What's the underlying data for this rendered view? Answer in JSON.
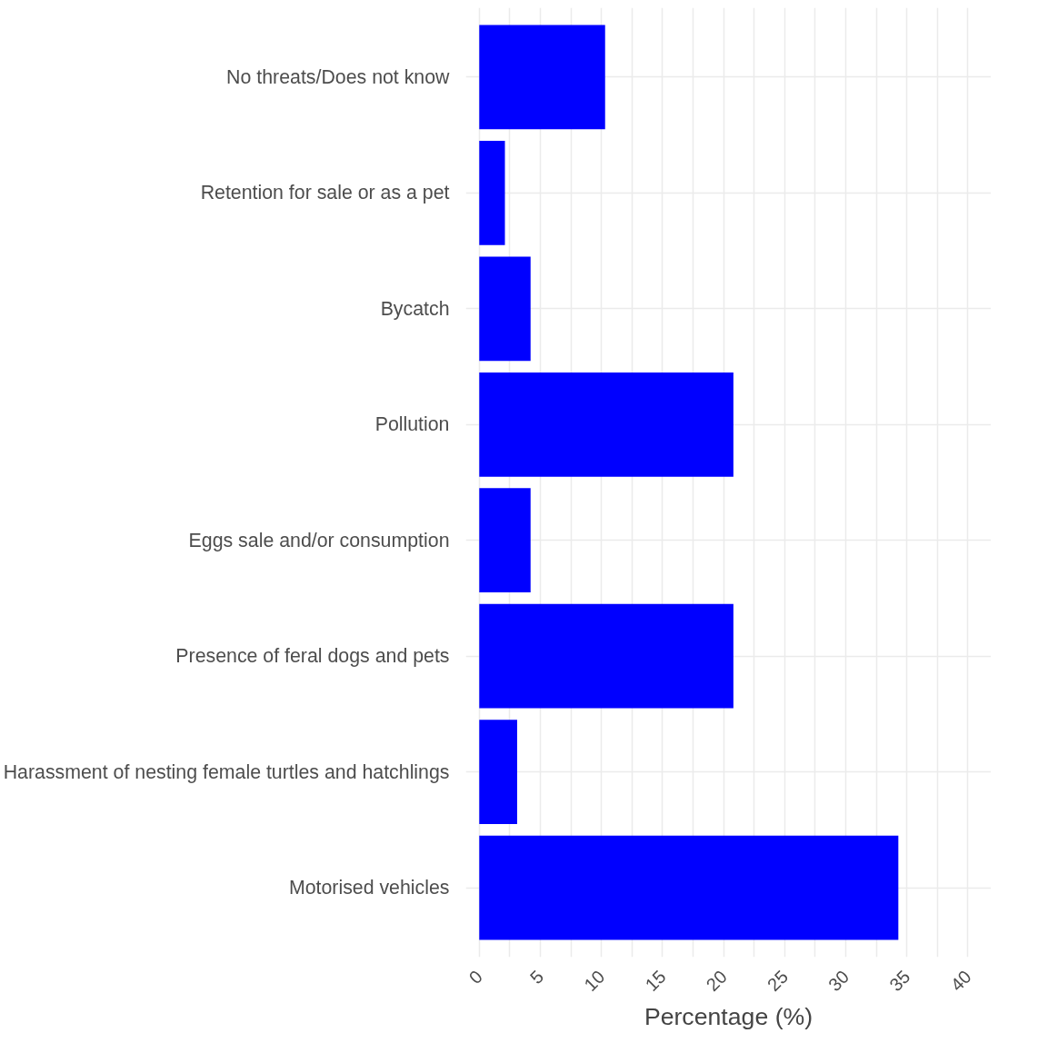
{
  "chart_data": {
    "type": "bar",
    "orientation": "horizontal",
    "xlabel": "Percentage (%)",
    "categories": [
      "No threats/Does not know",
      "Retention for sale or as a pet",
      "Bycatch",
      "Pollution",
      "Eggs sale and/or consumption",
      "Presence of feral dogs and pets",
      "Harassment of nesting female turtles and hatchlings",
      "Motorised vehicles"
    ],
    "values": [
      10.3,
      2.1,
      4.2,
      20.8,
      4.2,
      20.8,
      3.1,
      34.3
    ],
    "color": "#0000ff",
    "xlim": [
      -1.1,
      41.9
    ],
    "xticks": [
      0,
      {
        "value": 2.5,
        "label": null
      },
      5,
      {
        "value": 7.5,
        "label": null
      },
      10,
      {
        "value": 12.5,
        "label": null
      },
      15,
      {
        "value": 17.5,
        "label": null
      },
      20,
      {
        "value": 22.5,
        "label": null
      },
      25,
      {
        "value": 27.5,
        "label": null
      },
      30,
      {
        "value": 32.5,
        "label": null
      },
      35,
      {
        "value": 37.5,
        "label": null
      },
      40
    ],
    "grid": true
  }
}
